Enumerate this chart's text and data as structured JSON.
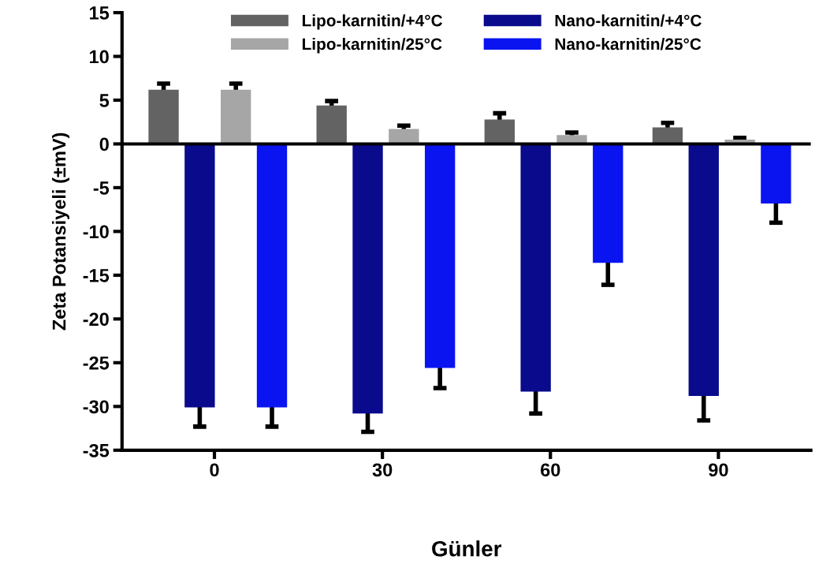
{
  "chart_data": {
    "type": "bar",
    "xlabel": "Günler",
    "ylabel": "Zeta Potansiyeli (±mV)",
    "categories": [
      "0",
      "30",
      "60",
      "90"
    ],
    "series": [
      {
        "name": "Lipo-karnitin/+4°C",
        "color": "#636363",
        "values": [
          6.2,
          4.4,
          2.8,
          1.9
        ],
        "errors": [
          0.7,
          0.5,
          0.7,
          0.5
        ]
      },
      {
        "name": "Nano-karnitin/+4°C",
        "color": "#0a0a8c",
        "values": [
          -30.1,
          -30.8,
          -28.3,
          -28.8
        ],
        "errors": [
          2.2,
          2.1,
          2.5,
          2.8
        ]
      },
      {
        "name": "Lipo-karnitin/25°C",
        "color": "#a6a6a6",
        "values": [
          6.2,
          1.7,
          1.0,
          0.5
        ],
        "errors": [
          0.7,
          0.4,
          0.3,
          0.2
        ]
      },
      {
        "name": "Nano-karnitin/25°C",
        "color": "#0a14f0",
        "values": [
          -30.1,
          -25.6,
          -13.6,
          -6.8
        ],
        "errors": [
          2.2,
          2.3,
          2.5,
          2.2
        ]
      }
    ],
    "ylim": [
      -35,
      15
    ],
    "yticks": [
      -35,
      -30,
      -25,
      -20,
      -15,
      -10,
      -5,
      0,
      5,
      10,
      15
    ],
    "ref_lines": [
      {
        "axis": "y",
        "value": 0,
        "color": "#000000"
      }
    ],
    "grid": false,
    "legend": "top"
  }
}
